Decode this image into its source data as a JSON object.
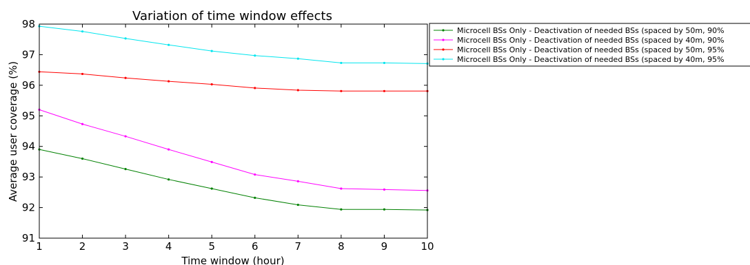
{
  "chart_data": {
    "type": "line",
    "title": "Variation of time window effects",
    "xlabel": "Time window (hour)",
    "ylabel": "Average user coverage (%)",
    "xlim": [
      1,
      10
    ],
    "ylim": [
      91,
      98
    ],
    "xticks": [
      "1",
      "2",
      "3",
      "4",
      "5",
      "6",
      "7",
      "8",
      "9",
      "10"
    ],
    "yticks": [
      "91",
      "92",
      "93",
      "94",
      "95",
      "96",
      "97",
      "98"
    ],
    "grid": false,
    "legend": "outside-top-right",
    "x": [
      1,
      2,
      3,
      4,
      5,
      6,
      7,
      8,
      9,
      10
    ],
    "series": [
      {
        "name": "Microcell BSs Only - Deactivation of needed BSs (spaced by 50m, 90%",
        "color": "#008000",
        "values": [
          93.9,
          93.6,
          93.26,
          92.92,
          92.62,
          92.32,
          92.09,
          91.94,
          91.94,
          91.92
        ]
      },
      {
        "name": "Microcell BSs Only - Deactivation of needed BSs (spaced by 40m, 90%",
        "color": "#ff00ff",
        "values": [
          95.2,
          94.73,
          94.33,
          93.9,
          93.49,
          93.08,
          92.86,
          92.62,
          92.59,
          92.56
        ]
      },
      {
        "name": "Microcell BSs Only - Deactivation of needed BSs (spaced by 50m, 95%",
        "color": "#ff0000",
        "values": [
          96.44,
          96.37,
          96.24,
          96.13,
          96.03,
          95.91,
          95.84,
          95.81,
          95.81,
          95.81
        ]
      },
      {
        "name": "Microcell BSs Only - Deactivation of needed BSs (spaced by 40m, 95%",
        "color": "#00e5ee",
        "values": [
          97.93,
          97.76,
          97.53,
          97.32,
          97.12,
          96.97,
          96.87,
          96.73,
          96.73,
          96.71
        ]
      }
    ]
  }
}
